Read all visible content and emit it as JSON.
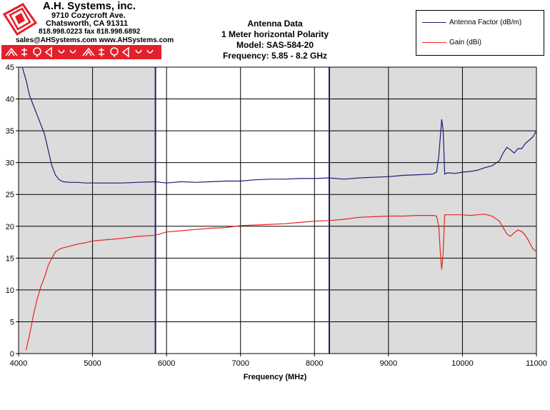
{
  "logo": {
    "company": "A.H. Systems, inc.",
    "street": "9710 Cozycroft Ave.",
    "city": "Chatsworth, CA 91311",
    "phone": "818.998.0223 fax 818.998.6892",
    "web": "sales@AHSystems.com www.AHSystems.com",
    "bar_color": "#e4202b"
  },
  "chart_data": {
    "type": "line",
    "title_lines": [
      "Antenna Data",
      "1 Meter horizontal Polarity",
      "Model: SAS-584-20",
      "Frequency: 5.85 - 8.2 GHz"
    ],
    "xlabel": "Frequency (MHz)",
    "ylabel": "",
    "xlim": [
      4000,
      11000
    ],
    "ylim": [
      0,
      45
    ],
    "xticks": [
      4000,
      5000,
      6000,
      7000,
      8000,
      9000,
      10000,
      11000
    ],
    "yticks": [
      0,
      5,
      10,
      15,
      20,
      25,
      30,
      35,
      40,
      45
    ],
    "grid": true,
    "legend_position": "top-right",
    "band_lines": [
      5850,
      8200
    ],
    "shaded_ranges": [
      [
        4000,
        5850
      ],
      [
        8200,
        11000
      ]
    ],
    "series": [
      {
        "name": "Antenna Factor (dB/m)",
        "color": "#1c1c7a",
        "points": [
          [
            4050,
            45
          ],
          [
            4100,
            43
          ],
          [
            4150,
            40.5
          ],
          [
            4200,
            39
          ],
          [
            4250,
            37.5
          ],
          [
            4300,
            36
          ],
          [
            4350,
            34.5
          ],
          [
            4400,
            32
          ],
          [
            4450,
            29.5
          ],
          [
            4500,
            28
          ],
          [
            4550,
            27.3
          ],
          [
            4600,
            27
          ],
          [
            4700,
            26.9
          ],
          [
            4800,
            26.9
          ],
          [
            4900,
            26.8
          ],
          [
            5000,
            26.8
          ],
          [
            5200,
            26.8
          ],
          [
            5400,
            26.8
          ],
          [
            5600,
            26.9
          ],
          [
            5850,
            27.0
          ],
          [
            6000,
            26.8
          ],
          [
            6200,
            27.0
          ],
          [
            6400,
            26.9
          ],
          [
            6600,
            27.0
          ],
          [
            6800,
            27.1
          ],
          [
            7000,
            27.1
          ],
          [
            7200,
            27.3
          ],
          [
            7400,
            27.4
          ],
          [
            7600,
            27.4
          ],
          [
            7800,
            27.5
          ],
          [
            8000,
            27.5
          ],
          [
            8200,
            27.6
          ],
          [
            8400,
            27.4
          ],
          [
            8600,
            27.6
          ],
          [
            8800,
            27.7
          ],
          [
            9000,
            27.8
          ],
          [
            9200,
            28.0
          ],
          [
            9400,
            28.1
          ],
          [
            9600,
            28.2
          ],
          [
            9650,
            28.5
          ],
          [
            9680,
            31
          ],
          [
            9700,
            34
          ],
          [
            9720,
            36.8
          ],
          [
            9740,
            35
          ],
          [
            9760,
            28.2
          ],
          [
            9800,
            28.4
          ],
          [
            9900,
            28.3
          ],
          [
            10000,
            28.5
          ],
          [
            10100,
            28.6
          ],
          [
            10200,
            28.8
          ],
          [
            10300,
            29.2
          ],
          [
            10400,
            29.5
          ],
          [
            10500,
            30.3
          ],
          [
            10550,
            31.5
          ],
          [
            10600,
            32.4
          ],
          [
            10650,
            32
          ],
          [
            10700,
            31.5
          ],
          [
            10750,
            32.2
          ],
          [
            10800,
            32.2
          ],
          [
            10850,
            33
          ],
          [
            10900,
            33.5
          ],
          [
            10950,
            34
          ],
          [
            11000,
            35
          ]
        ]
      },
      {
        "name": "Gain (dBi)",
        "color": "#e8231e",
        "points": [
          [
            4100,
            0.5
          ],
          [
            4150,
            3
          ],
          [
            4200,
            6
          ],
          [
            4250,
            8.5
          ],
          [
            4300,
            10.5
          ],
          [
            4350,
            12
          ],
          [
            4400,
            13.8
          ],
          [
            4450,
            15
          ],
          [
            4500,
            16
          ],
          [
            4550,
            16.4
          ],
          [
            4600,
            16.6
          ],
          [
            4700,
            16.9
          ],
          [
            4800,
            17.2
          ],
          [
            4900,
            17.4
          ],
          [
            5000,
            17.7
          ],
          [
            5200,
            17.9
          ],
          [
            5400,
            18.1
          ],
          [
            5600,
            18.4
          ],
          [
            5850,
            18.6
          ],
          [
            6000,
            19.1
          ],
          [
            6200,
            19.3
          ],
          [
            6400,
            19.5
          ],
          [
            6600,
            19.7
          ],
          [
            6800,
            19.8
          ],
          [
            7000,
            20.1
          ],
          [
            7200,
            20.2
          ],
          [
            7400,
            20.3
          ],
          [
            7600,
            20.4
          ],
          [
            7800,
            20.6
          ],
          [
            8000,
            20.8
          ],
          [
            8200,
            20.9
          ],
          [
            8400,
            21.1
          ],
          [
            8600,
            21.4
          ],
          [
            8800,
            21.5
          ],
          [
            9000,
            21.6
          ],
          [
            9200,
            21.6
          ],
          [
            9400,
            21.7
          ],
          [
            9600,
            21.7
          ],
          [
            9650,
            21.6
          ],
          [
            9680,
            20
          ],
          [
            9700,
            16
          ],
          [
            9720,
            13.2
          ],
          [
            9740,
            16
          ],
          [
            9760,
            21.8
          ],
          [
            9800,
            21.8
          ],
          [
            9900,
            21.8
          ],
          [
            10000,
            21.8
          ],
          [
            10100,
            21.7
          ],
          [
            10200,
            21.8
          ],
          [
            10300,
            21.9
          ],
          [
            10400,
            21.6
          ],
          [
            10450,
            21.2
          ],
          [
            10500,
            20.8
          ],
          [
            10550,
            19.8
          ],
          [
            10600,
            18.8
          ],
          [
            10650,
            18.4
          ],
          [
            10700,
            19
          ],
          [
            10750,
            19.4
          ],
          [
            10800,
            19.2
          ],
          [
            10850,
            18.6
          ],
          [
            10900,
            17.6
          ],
          [
            10950,
            16.5
          ],
          [
            11000,
            16
          ]
        ]
      }
    ]
  }
}
